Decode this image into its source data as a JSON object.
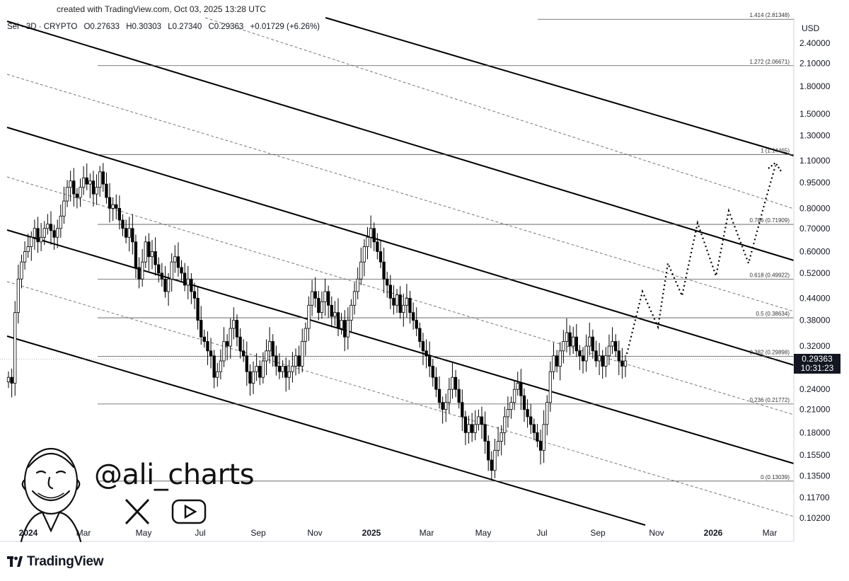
{
  "credit": "created with TradingView.com, Oct 03, 2025 13:28 UTC",
  "symbol_line": {
    "name": "Sei · 3D · CRYPTO",
    "open": "O0.27633",
    "high": "H0.30303",
    "low": "L0.27340",
    "close": "C0.29363",
    "change": "+0.01729 (+6.26%)"
  },
  "currency": "USD",
  "last_price": {
    "value": "0.29363",
    "countdown": "10:31:23"
  },
  "watermark_handle": "@ali_charts",
  "brand": "TradingView",
  "colors": {
    "up": "#ffffff",
    "down": "#000000",
    "outline": "#000000",
    "grid": "#555555",
    "price_tag": "#131722"
  },
  "chart_data": {
    "type": "candlestick",
    "y_scale": "log",
    "y_ticks": [
      "2.40000",
      "2.10000",
      "1.80000",
      "1.50000",
      "1.30000",
      "1.10000",
      "0.95000",
      "0.80000",
      "0.70000",
      "0.60000",
      "0.52000",
      "0.44000",
      "0.38000",
      "0.32000",
      "0.24000",
      "0.21000",
      "0.18000",
      "0.15500",
      "0.13500",
      "0.11700",
      "0.10200"
    ],
    "x_ticks": [
      {
        "label": "2024",
        "bold": true
      },
      {
        "label": "Mar"
      },
      {
        "label": "May"
      },
      {
        "label": "Jul"
      },
      {
        "label": "Sep"
      },
      {
        "label": "Nov"
      },
      {
        "label": "2025",
        "bold": true
      },
      {
        "label": "Mar"
      },
      {
        "label": "May"
      },
      {
        "label": "Jul"
      },
      {
        "label": "Sep"
      },
      {
        "label": "Nov"
      },
      {
        "label": "2026",
        "bold": true
      },
      {
        "label": "Mar"
      }
    ],
    "fib_levels": [
      {
        "label": "1.414 (2.81348)",
        "value": 2.81348
      },
      {
        "label": "1.272 (2.06671)",
        "value": 2.06671
      },
      {
        "label": "1 (1.14465)",
        "value": 1.14465
      },
      {
        "label": "0.786 (0.71909)",
        "value": 0.71909
      },
      {
        "label": "0.618 (0.49922)",
        "value": 0.49922
      },
      {
        "label": "0.5 (0.38634)",
        "value": 0.38634
      },
      {
        "label": "0.382 (0.29898)",
        "value": 0.29898
      },
      {
        "label": "0.236 (0.21772)",
        "value": 0.21772
      },
      {
        "label": "0 (0.13039)",
        "value": 0.13039
      }
    ],
    "closes": [
      0.26,
      0.25,
      0.4,
      0.5,
      0.56,
      0.6,
      0.62,
      0.66,
      0.7,
      0.64,
      0.66,
      0.7,
      0.72,
      0.69,
      0.66,
      0.7,
      0.76,
      0.84,
      0.92,
      0.96,
      0.88,
      0.86,
      0.92,
      0.98,
      0.94,
      0.96,
      0.88,
      0.92,
      1.02,
      0.94,
      0.86,
      0.8,
      0.82,
      0.8,
      0.74,
      0.7,
      0.66,
      0.7,
      0.64,
      0.54,
      0.5,
      0.56,
      0.64,
      0.58,
      0.6,
      0.55,
      0.52,
      0.5,
      0.46,
      0.5,
      0.56,
      0.58,
      0.54,
      0.52,
      0.48,
      0.5,
      0.46,
      0.44,
      0.38,
      0.34,
      0.33,
      0.31,
      0.3,
      0.26,
      0.27,
      0.29,
      0.33,
      0.32,
      0.36,
      0.38,
      0.34,
      0.31,
      0.3,
      0.27,
      0.25,
      0.27,
      0.28,
      0.26,
      0.29,
      0.31,
      0.33,
      0.3,
      0.28,
      0.27,
      0.28,
      0.26,
      0.27,
      0.28,
      0.3,
      0.28,
      0.33,
      0.36,
      0.42,
      0.46,
      0.44,
      0.4,
      0.43,
      0.46,
      0.42,
      0.39,
      0.4,
      0.36,
      0.38,
      0.34,
      0.38,
      0.42,
      0.46,
      0.5,
      0.56,
      0.62,
      0.66,
      0.7,
      0.64,
      0.6,
      0.56,
      0.5,
      0.48,
      0.44,
      0.42,
      0.45,
      0.4,
      0.42,
      0.44,
      0.4,
      0.38,
      0.36,
      0.33,
      0.31,
      0.3,
      0.28,
      0.26,
      0.24,
      0.22,
      0.21,
      0.22,
      0.24,
      0.26,
      0.24,
      0.22,
      0.2,
      0.18,
      0.19,
      0.18,
      0.19,
      0.2,
      0.19,
      0.17,
      0.15,
      0.14,
      0.16,
      0.17,
      0.18,
      0.2,
      0.21,
      0.22,
      0.24,
      0.25,
      0.23,
      0.21,
      0.2,
      0.19,
      0.18,
      0.17,
      0.16,
      0.19,
      0.22,
      0.27,
      0.3,
      0.28,
      0.31,
      0.33,
      0.35,
      0.32,
      0.34,
      0.31,
      0.3,
      0.29,
      0.32,
      0.34,
      0.31,
      0.29,
      0.3,
      0.28,
      0.3,
      0.32,
      0.33,
      0.31,
      0.29,
      0.28,
      0.29
    ]
  }
}
